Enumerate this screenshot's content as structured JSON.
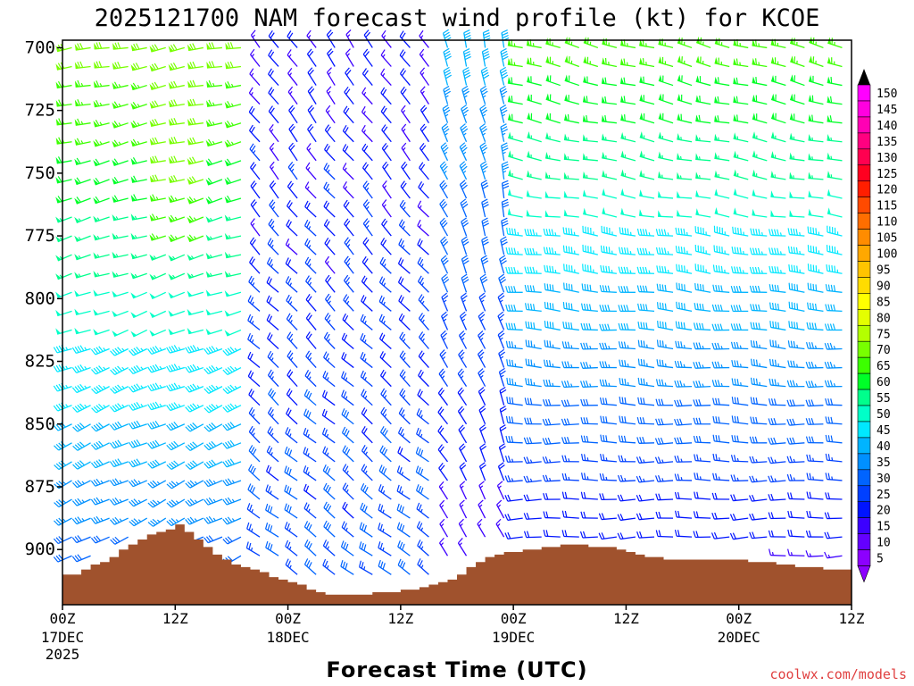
{
  "chart_data": {
    "type": "wind-barb time-height",
    "title": "2025121700 NAM forecast wind profile (kt) for KCOE",
    "xlabel": "Forecast Time (UTC)",
    "ylabel": "",
    "y_axis": {
      "units": "hPa",
      "range": [
        922,
        697
      ],
      "ticks": [
        "700",
        "725",
        "750",
        "775",
        "800",
        "825",
        "850",
        "875",
        "900"
      ]
    },
    "x_axis": {
      "range_hours": [
        0,
        84
      ],
      "ticks": [
        {
          "hour": 0,
          "label": "00Z",
          "date": "17DEC",
          "year": "2025"
        },
        {
          "hour": 12,
          "label": "12Z",
          "date": "",
          "year": ""
        },
        {
          "hour": 24,
          "label": "00Z",
          "date": "18DEC",
          "year": ""
        },
        {
          "hour": 36,
          "label": "12Z",
          "date": "",
          "year": ""
        },
        {
          "hour": 48,
          "label": "00Z",
          "date": "19DEC",
          "year": ""
        },
        {
          "hour": 60,
          "label": "12Z",
          "date": "",
          "year": ""
        },
        {
          "hour": 72,
          "label": "00Z",
          "date": "20DEC",
          "year": ""
        },
        {
          "hour": 84,
          "label": "12Z",
          "date": "",
          "year": ""
        }
      ]
    },
    "colorbar": {
      "labels": [
        "150",
        "145",
        "140",
        "135",
        "130",
        "125",
        "120",
        "115",
        "110",
        "105",
        "100",
        "95",
        "90",
        "85",
        "80",
        "75",
        "70",
        "65",
        "60",
        "55",
        "50",
        "45",
        "40",
        "35",
        "30",
        "25",
        "20",
        "15",
        "10",
        "5"
      ],
      "colors": [
        "#ff00ff",
        "#ff00e0",
        "#ff00b4",
        "#ff0080",
        "#ff0050",
        "#ff0020",
        "#ff1e00",
        "#ff4a00",
        "#ff6e00",
        "#ff8c00",
        "#ffa800",
        "#ffc400",
        "#ffdc00",
        "#ffff00",
        "#e4ff00",
        "#b4ff00",
        "#78ff00",
        "#3cff00",
        "#00ff28",
        "#00ff8c",
        "#00ffc8",
        "#00e8ff",
        "#00b4ff",
        "#0090ff",
        "#0064ff",
        "#0040ff",
        "#0014ff",
        "#3c00ff",
        "#6400ff",
        "#8c00ff"
      ],
      "top_arrow_color": "#000000",
      "bottom_arrow_color": "#8c00ff"
    },
    "surface_pressure": {
      "hours": [
        0,
        1,
        2,
        3,
        4,
        5,
        6,
        7,
        8,
        9,
        10,
        11,
        12,
        13,
        14,
        15,
        16,
        17,
        18,
        19,
        20,
        21,
        22,
        23,
        24,
        25,
        26,
        27,
        28,
        29,
        30,
        31,
        32,
        33,
        34,
        35,
        36,
        37,
        38,
        39,
        40,
        41,
        42,
        43,
        44,
        45,
        46,
        47,
        48,
        49,
        50,
        51,
        52,
        53,
        54,
        55,
        56,
        57,
        58,
        59,
        60,
        61,
        62,
        63,
        64,
        65,
        66,
        67,
        68,
        69,
        70,
        71,
        72,
        73,
        74,
        75,
        76,
        77,
        78,
        79,
        80,
        81,
        82,
        83,
        84
      ],
      "hPa": [
        910,
        910,
        908,
        906,
        905,
        903,
        900,
        898,
        896,
        894,
        893,
        892,
        890,
        893,
        896,
        899,
        902,
        904,
        906,
        907,
        908,
        909,
        911,
        912,
        913,
        914,
        916,
        917,
        918,
        918,
        918,
        918,
        918,
        917,
        917,
        917,
        916,
        916,
        915,
        914,
        913,
        912,
        910,
        907,
        905,
        903,
        902,
        901,
        901,
        900,
        900,
        899,
        899,
        898,
        898,
        898,
        899,
        899,
        899,
        900,
        901,
        902,
        903,
        903,
        904,
        904,
        904,
        904,
        904,
        904,
        904,
        904,
        904,
        905,
        905,
        905,
        906,
        906,
        907,
        907,
        907,
        908,
        908,
        908,
        909
      ]
    },
    "wind_profile_summary": [
      {
        "segment": "hours 0-20",
        "direction_deg": 250,
        "speed_kt_range": [
          25,
          70
        ]
      },
      {
        "segment": "hours 21-39",
        "direction_deg": 315,
        "speed_kt_range": [
          5,
          35
        ]
      },
      {
        "segment": "hours 40-48",
        "direction_deg": 345,
        "speed_kt_range": [
          10,
          40
        ]
      },
      {
        "segment": "hours 49-84",
        "direction_deg": 275,
        "speed_kt_range": [
          10,
          65
        ]
      }
    ]
  },
  "credit": "coolwx.com/models"
}
